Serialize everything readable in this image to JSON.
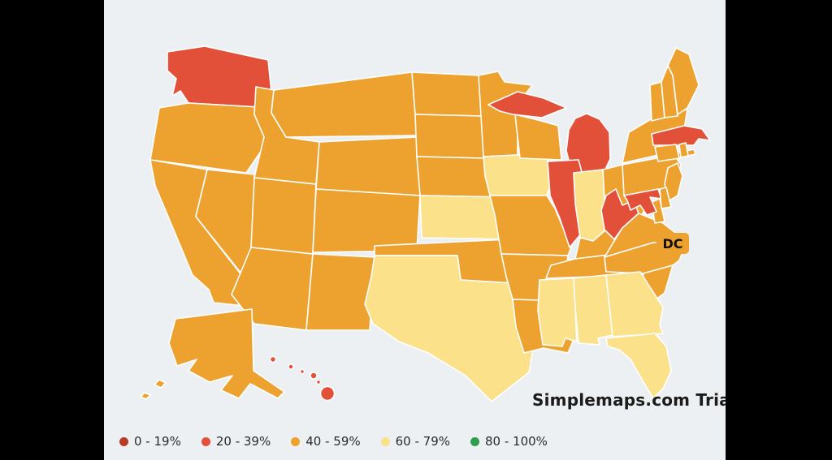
{
  "canvas": {
    "letterbox_color": "#000000",
    "panel_background": "#edf0f2",
    "state_border_color": "#ffffff"
  },
  "watermark": {
    "text": "Simplemaps.com Tria"
  },
  "dc_label": {
    "text": "DC",
    "bucket": "40 - 59%"
  },
  "legend": {
    "items": [
      {
        "label": "0 - 19%",
        "color": "#b93b27"
      },
      {
        "label": "20 - 39%",
        "color": "#e2503a"
      },
      {
        "label": "40 - 59%",
        "color": "#eda22f"
      },
      {
        "label": "60 - 79%",
        "color": "#fbe189"
      },
      {
        "label": "80 - 100%",
        "color": "#2e9e4c"
      }
    ]
  },
  "map": {
    "type": "choropleth-usa",
    "states": [
      {
        "id": "WA",
        "name": "Washington",
        "bucket": "20 - 39%"
      },
      {
        "id": "OR",
        "name": "Oregon",
        "bucket": "40 - 59%"
      },
      {
        "id": "CA",
        "name": "California",
        "bucket": "40 - 59%"
      },
      {
        "id": "NV",
        "name": "Nevada",
        "bucket": "40 - 59%"
      },
      {
        "id": "ID",
        "name": "Idaho",
        "bucket": "40 - 59%"
      },
      {
        "id": "MT",
        "name": "Montana",
        "bucket": "40 - 59%"
      },
      {
        "id": "WY",
        "name": "Wyoming",
        "bucket": "40 - 59%"
      },
      {
        "id": "UT",
        "name": "Utah",
        "bucket": "40 - 59%"
      },
      {
        "id": "CO",
        "name": "Colorado",
        "bucket": "40 - 59%"
      },
      {
        "id": "AZ",
        "name": "Arizona",
        "bucket": "40 - 59%"
      },
      {
        "id": "NM",
        "name": "New Mexico",
        "bucket": "40 - 59%"
      },
      {
        "id": "ND",
        "name": "North Dakota",
        "bucket": "40 - 59%"
      },
      {
        "id": "SD",
        "name": "South Dakota",
        "bucket": "40 - 59%"
      },
      {
        "id": "NE",
        "name": "Nebraska",
        "bucket": "40 - 59%"
      },
      {
        "id": "KS",
        "name": "Kansas",
        "bucket": "60 - 79%"
      },
      {
        "id": "OK",
        "name": "Oklahoma",
        "bucket": "40 - 59%"
      },
      {
        "id": "TX",
        "name": "Texas",
        "bucket": "60 - 79%"
      },
      {
        "id": "MN",
        "name": "Minnesota",
        "bucket": "40 - 59%"
      },
      {
        "id": "IA",
        "name": "Iowa",
        "bucket": "60 - 79%"
      },
      {
        "id": "MO",
        "name": "Missouri",
        "bucket": "40 - 59%"
      },
      {
        "id": "AR",
        "name": "Arkansas",
        "bucket": "40 - 59%"
      },
      {
        "id": "LA",
        "name": "Louisiana",
        "bucket": "40 - 59%"
      },
      {
        "id": "WI",
        "name": "Wisconsin",
        "bucket": "40 - 59%"
      },
      {
        "id": "IL",
        "name": "Illinois",
        "bucket": "20 - 39%"
      },
      {
        "id": "MI",
        "name": "Michigan",
        "bucket": "20 - 39%"
      },
      {
        "id": "IN",
        "name": "Indiana",
        "bucket": "60 - 79%"
      },
      {
        "id": "OH",
        "name": "Ohio",
        "bucket": "40 - 59%"
      },
      {
        "id": "KY",
        "name": "Kentucky",
        "bucket": "40 - 59%"
      },
      {
        "id": "TN",
        "name": "Tennessee",
        "bucket": "40 - 59%"
      },
      {
        "id": "MS",
        "name": "Mississippi",
        "bucket": "60 - 79%"
      },
      {
        "id": "AL",
        "name": "Alabama",
        "bucket": "60 - 79%"
      },
      {
        "id": "GA",
        "name": "Georgia",
        "bucket": "60 - 79%"
      },
      {
        "id": "FL",
        "name": "Florida",
        "bucket": "60 - 79%"
      },
      {
        "id": "SC",
        "name": "South Carolina",
        "bucket": "40 - 59%"
      },
      {
        "id": "NC",
        "name": "North Carolina",
        "bucket": "40 - 59%"
      },
      {
        "id": "VA",
        "name": "Virginia",
        "bucket": "40 - 59%"
      },
      {
        "id": "WV",
        "name": "West Virginia",
        "bucket": "20 - 39%"
      },
      {
        "id": "MD",
        "name": "Maryland",
        "bucket": "20 - 39%"
      },
      {
        "id": "DE",
        "name": "Delaware",
        "bucket": "40 - 59%"
      },
      {
        "id": "NJ",
        "name": "New Jersey",
        "bucket": "40 - 59%"
      },
      {
        "id": "PA",
        "name": "Pennsylvania",
        "bucket": "40 - 59%"
      },
      {
        "id": "NY",
        "name": "New York",
        "bucket": "40 - 59%"
      },
      {
        "id": "CT",
        "name": "Connecticut",
        "bucket": "40 - 59%"
      },
      {
        "id": "RI",
        "name": "Rhode Island",
        "bucket": "40 - 59%"
      },
      {
        "id": "MA",
        "name": "Massachusetts",
        "bucket": "20 - 39%"
      },
      {
        "id": "VT",
        "name": "Vermont",
        "bucket": "40 - 59%"
      },
      {
        "id": "NH",
        "name": "New Hampshire",
        "bucket": "40 - 59%"
      },
      {
        "id": "ME",
        "name": "Maine",
        "bucket": "40 - 59%"
      },
      {
        "id": "AK",
        "name": "Alaska",
        "bucket": "40 - 59%"
      },
      {
        "id": "HI",
        "name": "Hawaii",
        "bucket": "20 - 39%"
      },
      {
        "id": "DC",
        "name": "District of Columbia",
        "bucket": "40 - 59%"
      }
    ]
  }
}
